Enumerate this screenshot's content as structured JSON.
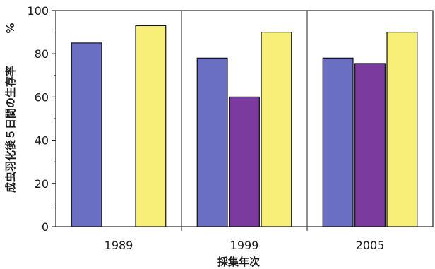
{
  "chart_data": {
    "type": "bar",
    "categories": [
      "1989",
      "1999",
      "2005"
    ],
    "series": [
      {
        "color": "#6a6fc4",
        "values": [
          85,
          78,
          78
        ]
      },
      {
        "color": "#7a3a9e",
        "values": [
          null,
          60,
          75.5
        ]
      },
      {
        "color": "#f7ef78",
        "values": [
          93,
          90,
          90
        ]
      }
    ],
    "xlabel": "採集年次",
    "ylabel": "成虫羽化後５日間の生存率",
    "yunit": "%",
    "ylim": [
      0,
      100
    ],
    "yticks": [
      0,
      20,
      40,
      60,
      80,
      100
    ],
    "grid": false,
    "legend": "none"
  }
}
